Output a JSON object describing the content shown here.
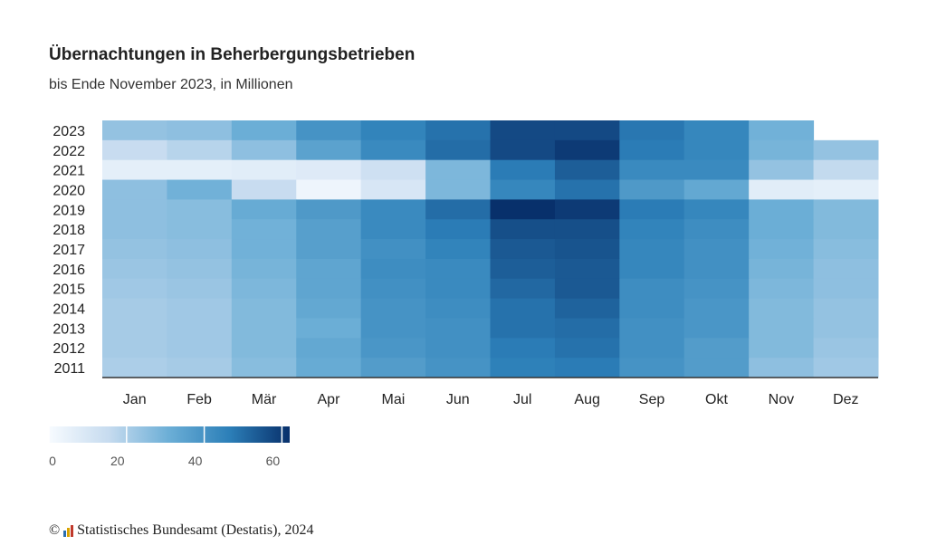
{
  "title": "Übernachtungen in Beherbergungsbetrieben",
  "subtitle": "bis Ende November 2023, in Millionen",
  "footer": {
    "copyright": "©",
    "source": "Statistisches Bundesamt (Destatis), 2024",
    "logo_icon": "destatis-bar-logo-icon"
  },
  "chart_data": {
    "type": "heatmap",
    "title": "Übernachtungen in Beherbergungsbetrieben",
    "subtitle": "bis Ende November 2023, in Millionen",
    "x_categories": [
      "Jan",
      "Feb",
      "Mär",
      "Apr",
      "Mai",
      "Jun",
      "Jul",
      "Aug",
      "Sep",
      "Okt",
      "Nov",
      "Dez"
    ],
    "y_categories": [
      "2023",
      "2022",
      "2021",
      "2020",
      "2019",
      "2018",
      "2017",
      "2016",
      "2015",
      "2014",
      "2013",
      "2012",
      "2011"
    ],
    "values": [
      [
        24,
        25,
        31,
        40,
        45,
        49,
        57,
        57,
        48,
        44,
        30,
        null
      ],
      [
        15,
        18,
        25,
        35,
        43,
        50,
        57,
        60,
        47,
        44,
        29,
        24
      ],
      [
        6,
        6,
        7,
        8,
        13,
        28,
        47,
        53,
        43,
        43,
        24,
        16
      ],
      [
        25,
        30,
        15,
        3,
        10,
        28,
        44,
        49,
        38,
        33,
        7,
        6
      ],
      [
        25,
        26,
        32,
        38,
        43,
        50,
        62,
        60,
        47,
        44,
        31,
        27
      ],
      [
        25,
        26,
        30,
        36,
        43,
        47,
        56,
        56,
        45,
        42,
        31,
        27
      ],
      [
        24,
        25,
        30,
        36,
        41,
        45,
        54,
        55,
        44,
        41,
        30,
        26
      ],
      [
        23,
        24,
        29,
        34,
        42,
        43,
        53,
        54,
        44,
        41,
        29,
        25
      ],
      [
        22,
        23,
        28,
        34,
        41,
        43,
        51,
        54,
        42,
        40,
        28,
        25
      ],
      [
        21,
        22,
        27,
        33,
        40,
        42,
        49,
        52,
        42,
        39,
        27,
        24
      ],
      [
        21,
        22,
        27,
        31,
        40,
        41,
        49,
        50,
        41,
        39,
        27,
        24
      ],
      [
        21,
        22,
        27,
        33,
        39,
        41,
        47,
        49,
        41,
        37,
        27,
        23
      ],
      [
        20,
        21,
        26,
        32,
        37,
        40,
        46,
        47,
        40,
        37,
        25,
        22
      ]
    ],
    "color_scale": {
      "min": 0,
      "max": 62,
      "ticks": [
        0,
        20,
        40,
        60
      ],
      "colors": [
        "#f7fbff",
        "#c6dbef",
        "#6baed6",
        "#2c7fb8",
        "#08306b"
      ]
    },
    "legend": "bottom-left"
  }
}
